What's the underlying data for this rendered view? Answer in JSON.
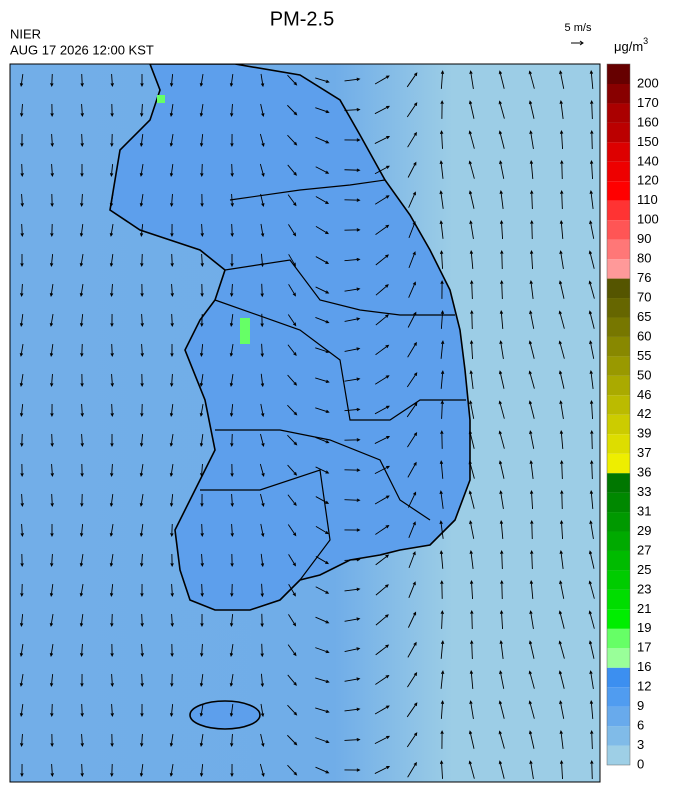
{
  "header": {
    "title": "PM-2.5",
    "agency": "NIER",
    "timestamp": "AUG 17 2026 12:00 KST",
    "wind_scale": "5 m/s"
  },
  "colorbar": {
    "unit_base": "μg/m",
    "unit_exponent": "3",
    "labels": [
      0,
      3,
      6,
      9,
      12,
      16,
      17,
      19,
      21,
      23,
      25,
      27,
      29,
      31,
      33,
      36,
      37,
      39,
      42,
      46,
      50,
      55,
      60,
      65,
      70,
      76,
      80,
      90,
      100,
      110,
      120,
      140,
      150,
      160,
      170,
      200
    ],
    "colors": [
      "#9ecfe6",
      "#80bbe8",
      "#68aaec",
      "#509cf0",
      "#3c8ff0",
      "#99ff99",
      "#66ff66",
      "#00ee00",
      "#00dd00",
      "#00cc00",
      "#00bb00",
      "#00aa00",
      "#009900",
      "#008800",
      "#007700",
      "#eeee00",
      "#dddd00",
      "#cccc00",
      "#bbbb00",
      "#aaaa00",
      "#999900",
      "#888800",
      "#777700",
      "#666600",
      "#555500",
      "#ff9999",
      "#ff7777",
      "#ff5555",
      "#ff3333",
      "#ff0000",
      "#ee0000",
      "#dd0000",
      "#bb0000",
      "#aa0000",
      "#880000",
      "#660000"
    ]
  }
}
